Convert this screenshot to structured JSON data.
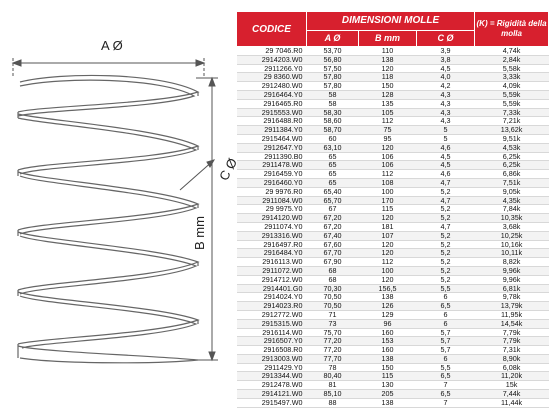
{
  "drawing": {
    "label_a": "A Ø",
    "label_b": "B mm",
    "label_c": "C Ø",
    "line_color": "#555555"
  },
  "table": {
    "header_color": "#d7202e",
    "headers": {
      "codice": "CODICE",
      "group": "DIMENSIONI MOLLE",
      "a": "A Ø",
      "b": "B mm",
      "c": "C Ø",
      "k": "(K) = Rigidità della molla"
    },
    "rows": [
      [
        "29 7046.R0",
        "53,70",
        "110",
        "3,9",
        "4,74k"
      ],
      [
        "2914203.W0",
        "56,80",
        "138",
        "3,8",
        "2,84k"
      ],
      [
        "2911266.Y0",
        "57,50",
        "120",
        "4,5",
        "5,58k"
      ],
      [
        "29 8360.W0",
        "57,80",
        "118",
        "4,0",
        "3,33k"
      ],
      [
        "2912480.W0",
        "57,80",
        "150",
        "4,2",
        "4,09k"
      ],
      [
        "2916464.Y0",
        "58",
        "128",
        "4,3",
        "5,59k"
      ],
      [
        "2916465.R0",
        "58",
        "135",
        "4,3",
        "5,59k"
      ],
      [
        "2915553.W0",
        "58,30",
        "105",
        "4,3",
        "7,33k"
      ],
      [
        "2916488.R0",
        "58,60",
        "112",
        "4,3",
        "7,21k"
      ],
      [
        "2911384.Y0",
        "58,70",
        "75",
        "5",
        "13,62k"
      ],
      [
        "2915464.W0",
        "60",
        "95",
        "5",
        "9,51k"
      ],
      [
        "2912647.Y0",
        "63,10",
        "120",
        "4,6",
        "4,53k"
      ],
      [
        "2911390.B0",
        "65",
        "106",
        "4,5",
        "6,25k"
      ],
      [
        "2911478.W0",
        "65",
        "106",
        "4,5",
        "6,25k"
      ],
      [
        "2916459.Y0",
        "65",
        "112",
        "4,6",
        "6,86k"
      ],
      [
        "2916460.Y0",
        "65",
        "108",
        "4,7",
        "7,51k"
      ],
      [
        "29 9976.R0",
        "65,40",
        "100",
        "5,2",
        "9,05k"
      ],
      [
        "2911084.W0",
        "65,70",
        "170",
        "4,7",
        "4,35k"
      ],
      [
        "29 9975.Y0",
        "67",
        "115",
        "5,2",
        "7,84k"
      ],
      [
        "2914120.W0",
        "67,20",
        "120",
        "5,2",
        "10,35k"
      ],
      [
        "2911074.Y0",
        "67,20",
        "181",
        "4,7",
        "3,68k"
      ],
      [
        "2913316.W0",
        "67,40",
        "107",
        "5,2",
        "10,25k"
      ],
      [
        "2916497.R0",
        "67,60",
        "120",
        "5,2",
        "10,16k"
      ],
      [
        "2916484.Y0",
        "67,70",
        "120",
        "5,2",
        "10,11k"
      ],
      [
        "2916113.W0",
        "67,90",
        "112",
        "5,2",
        "8,82k"
      ],
      [
        "2911072.W0",
        "68",
        "100",
        "5,2",
        "9,96k"
      ],
      [
        "2914712.W0",
        "68",
        "120",
        "5,2",
        "9,96k"
      ],
      [
        "2914401.G0",
        "70,30",
        "156,5",
        "5,5",
        "6,81k"
      ],
      [
        "2914024.Y0",
        "70,50",
        "138",
        "6",
        "9,78k"
      ],
      [
        "2914023.R0",
        "70,50",
        "126",
        "6,5",
        "13,79k"
      ],
      [
        "2912772.W0",
        "71",
        "129",
        "6",
        "11,95k"
      ],
      [
        "2915315.W0",
        "73",
        "96",
        "6",
        "14,54k"
      ],
      [
        "2916114.W0",
        "75,70",
        "160",
        "5,7",
        "7,79k"
      ],
      [
        "2916507.Y0",
        "77,20",
        "153",
        "5,7",
        "7,79k"
      ],
      [
        "2916508.R0",
        "77,20",
        "160",
        "5,7",
        "7,31k"
      ],
      [
        "2913003.W0",
        "77,70",
        "138",
        "6",
        "8,90k"
      ],
      [
        "2911429.Y0",
        "78",
        "150",
        "5,5",
        "6,08k"
      ],
      [
        "2913344.W0",
        "80,40",
        "115",
        "6,5",
        "11,20k"
      ],
      [
        "2912478.W0",
        "81",
        "130",
        "7",
        "15k"
      ],
      [
        "2914121.W0",
        "85,10",
        "205",
        "6,5",
        "7,44k"
      ],
      [
        "2915497.W0",
        "88",
        "138",
        "7",
        "11,44k"
      ]
    ]
  }
}
